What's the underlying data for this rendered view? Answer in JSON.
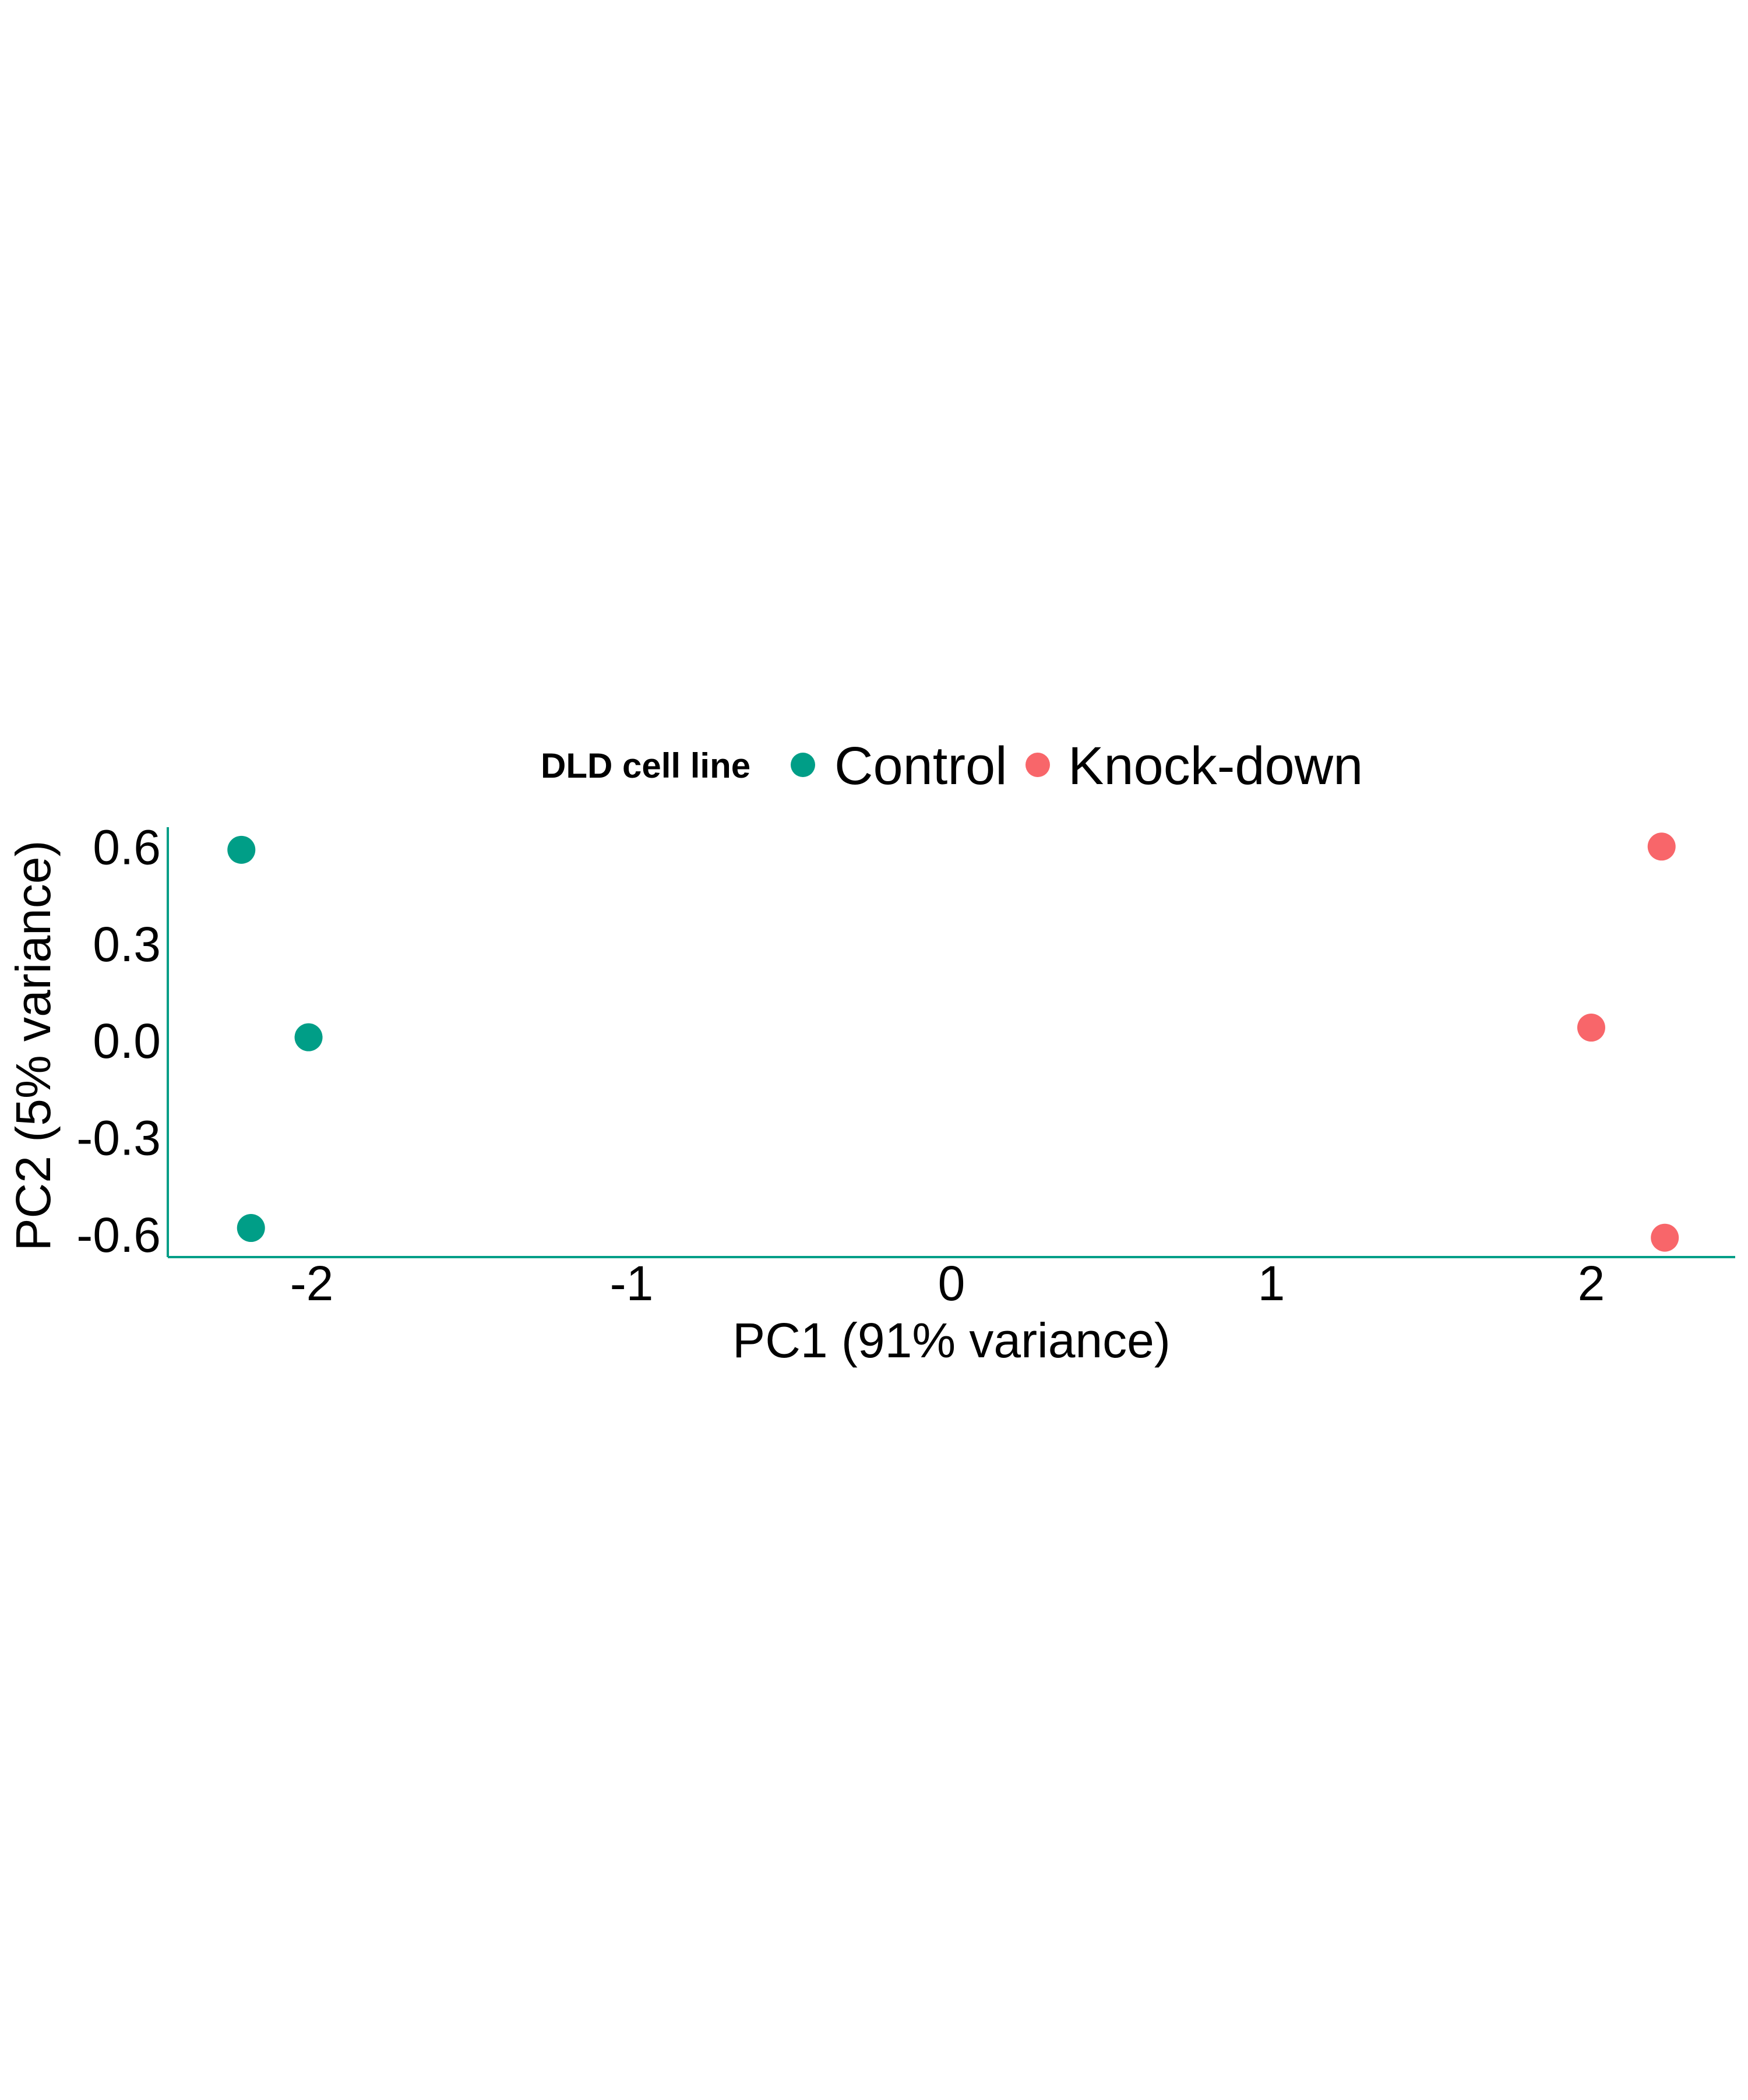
{
  "chart_data": {
    "type": "scatter",
    "title": "",
    "xlabel": "PC1 (91% variance)",
    "ylabel": "PC2 (5% variance)",
    "xlim": [
      -2.45,
      2.45
    ],
    "ylim": [
      -0.67,
      0.66
    ],
    "x_ticks": [
      -2,
      -1,
      0,
      1,
      2
    ],
    "x_tick_labels": [
      "-2",
      "-1",
      "0",
      "1",
      "2"
    ],
    "y_ticks": [
      0.6,
      0.3,
      0.0,
      -0.3,
      -0.6
    ],
    "y_tick_labels": [
      "0.6",
      "0.3",
      "0.0",
      "-0.3",
      "-0.6"
    ],
    "grid": false,
    "legend": {
      "title": "DLD cell line",
      "position": "top"
    },
    "axis_color": "#009E87",
    "series": [
      {
        "name": "Control",
        "color": "#009E87",
        "points": [
          {
            "x": -2.22,
            "y": 0.59
          },
          {
            "x": -2.01,
            "y": 0.01
          },
          {
            "x": -2.19,
            "y": -0.58
          }
        ]
      },
      {
        "name": "Knock-down",
        "color": "#F8666A",
        "points": [
          {
            "x": 2.22,
            "y": 0.6
          },
          {
            "x": 2.0,
            "y": 0.04
          },
          {
            "x": 2.23,
            "y": -0.61
          }
        ]
      }
    ]
  }
}
